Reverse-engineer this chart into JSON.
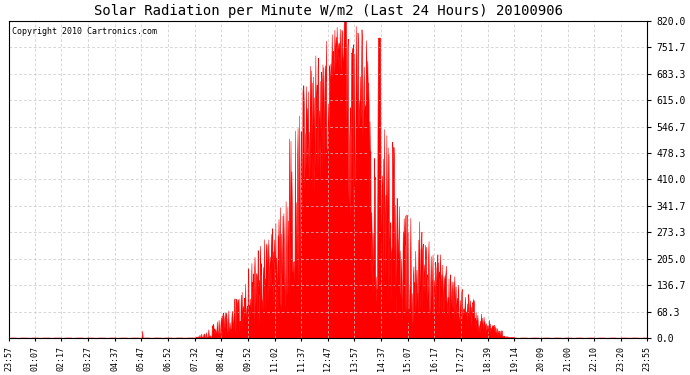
{
  "title": "Solar Radiation per Minute W/m2 (Last 24 Hours) 20100906",
  "copyright": "Copyright 2010 Cartronics.com",
  "bg_color": "#ffffff",
  "plot_bg_color": "#ffffff",
  "fill_color": "#ff0000",
  "line_color": "#ff0000",
  "dashed_line_color": "#ff0000",
  "grid_color": "#c8c8c8",
  "ytick_labels": [
    "0.0",
    "68.3",
    "136.7",
    "205.0",
    "273.3",
    "341.7",
    "410.0",
    "478.3",
    "546.7",
    "615.0",
    "683.3",
    "751.7",
    "820.0"
  ],
  "ytick_values": [
    0.0,
    68.3,
    136.7,
    205.0,
    273.3,
    341.7,
    410.0,
    478.3,
    546.7,
    615.0,
    683.3,
    751.7,
    820.0
  ],
  "ymin": 0.0,
  "ymax": 820.0,
  "xtick_labels": [
    "23:57",
    "01:07",
    "02:17",
    "03:27",
    "04:37",
    "05:47",
    "06:52",
    "07:32",
    "08:42",
    "09:52",
    "11:02",
    "11:37",
    "12:47",
    "13:57",
    "14:37",
    "15:07",
    "16:17",
    "17:27",
    "18:39",
    "19:14",
    "20:09",
    "21:00",
    "22:10",
    "23:20",
    "23:55"
  ],
  "num_points": 1440
}
